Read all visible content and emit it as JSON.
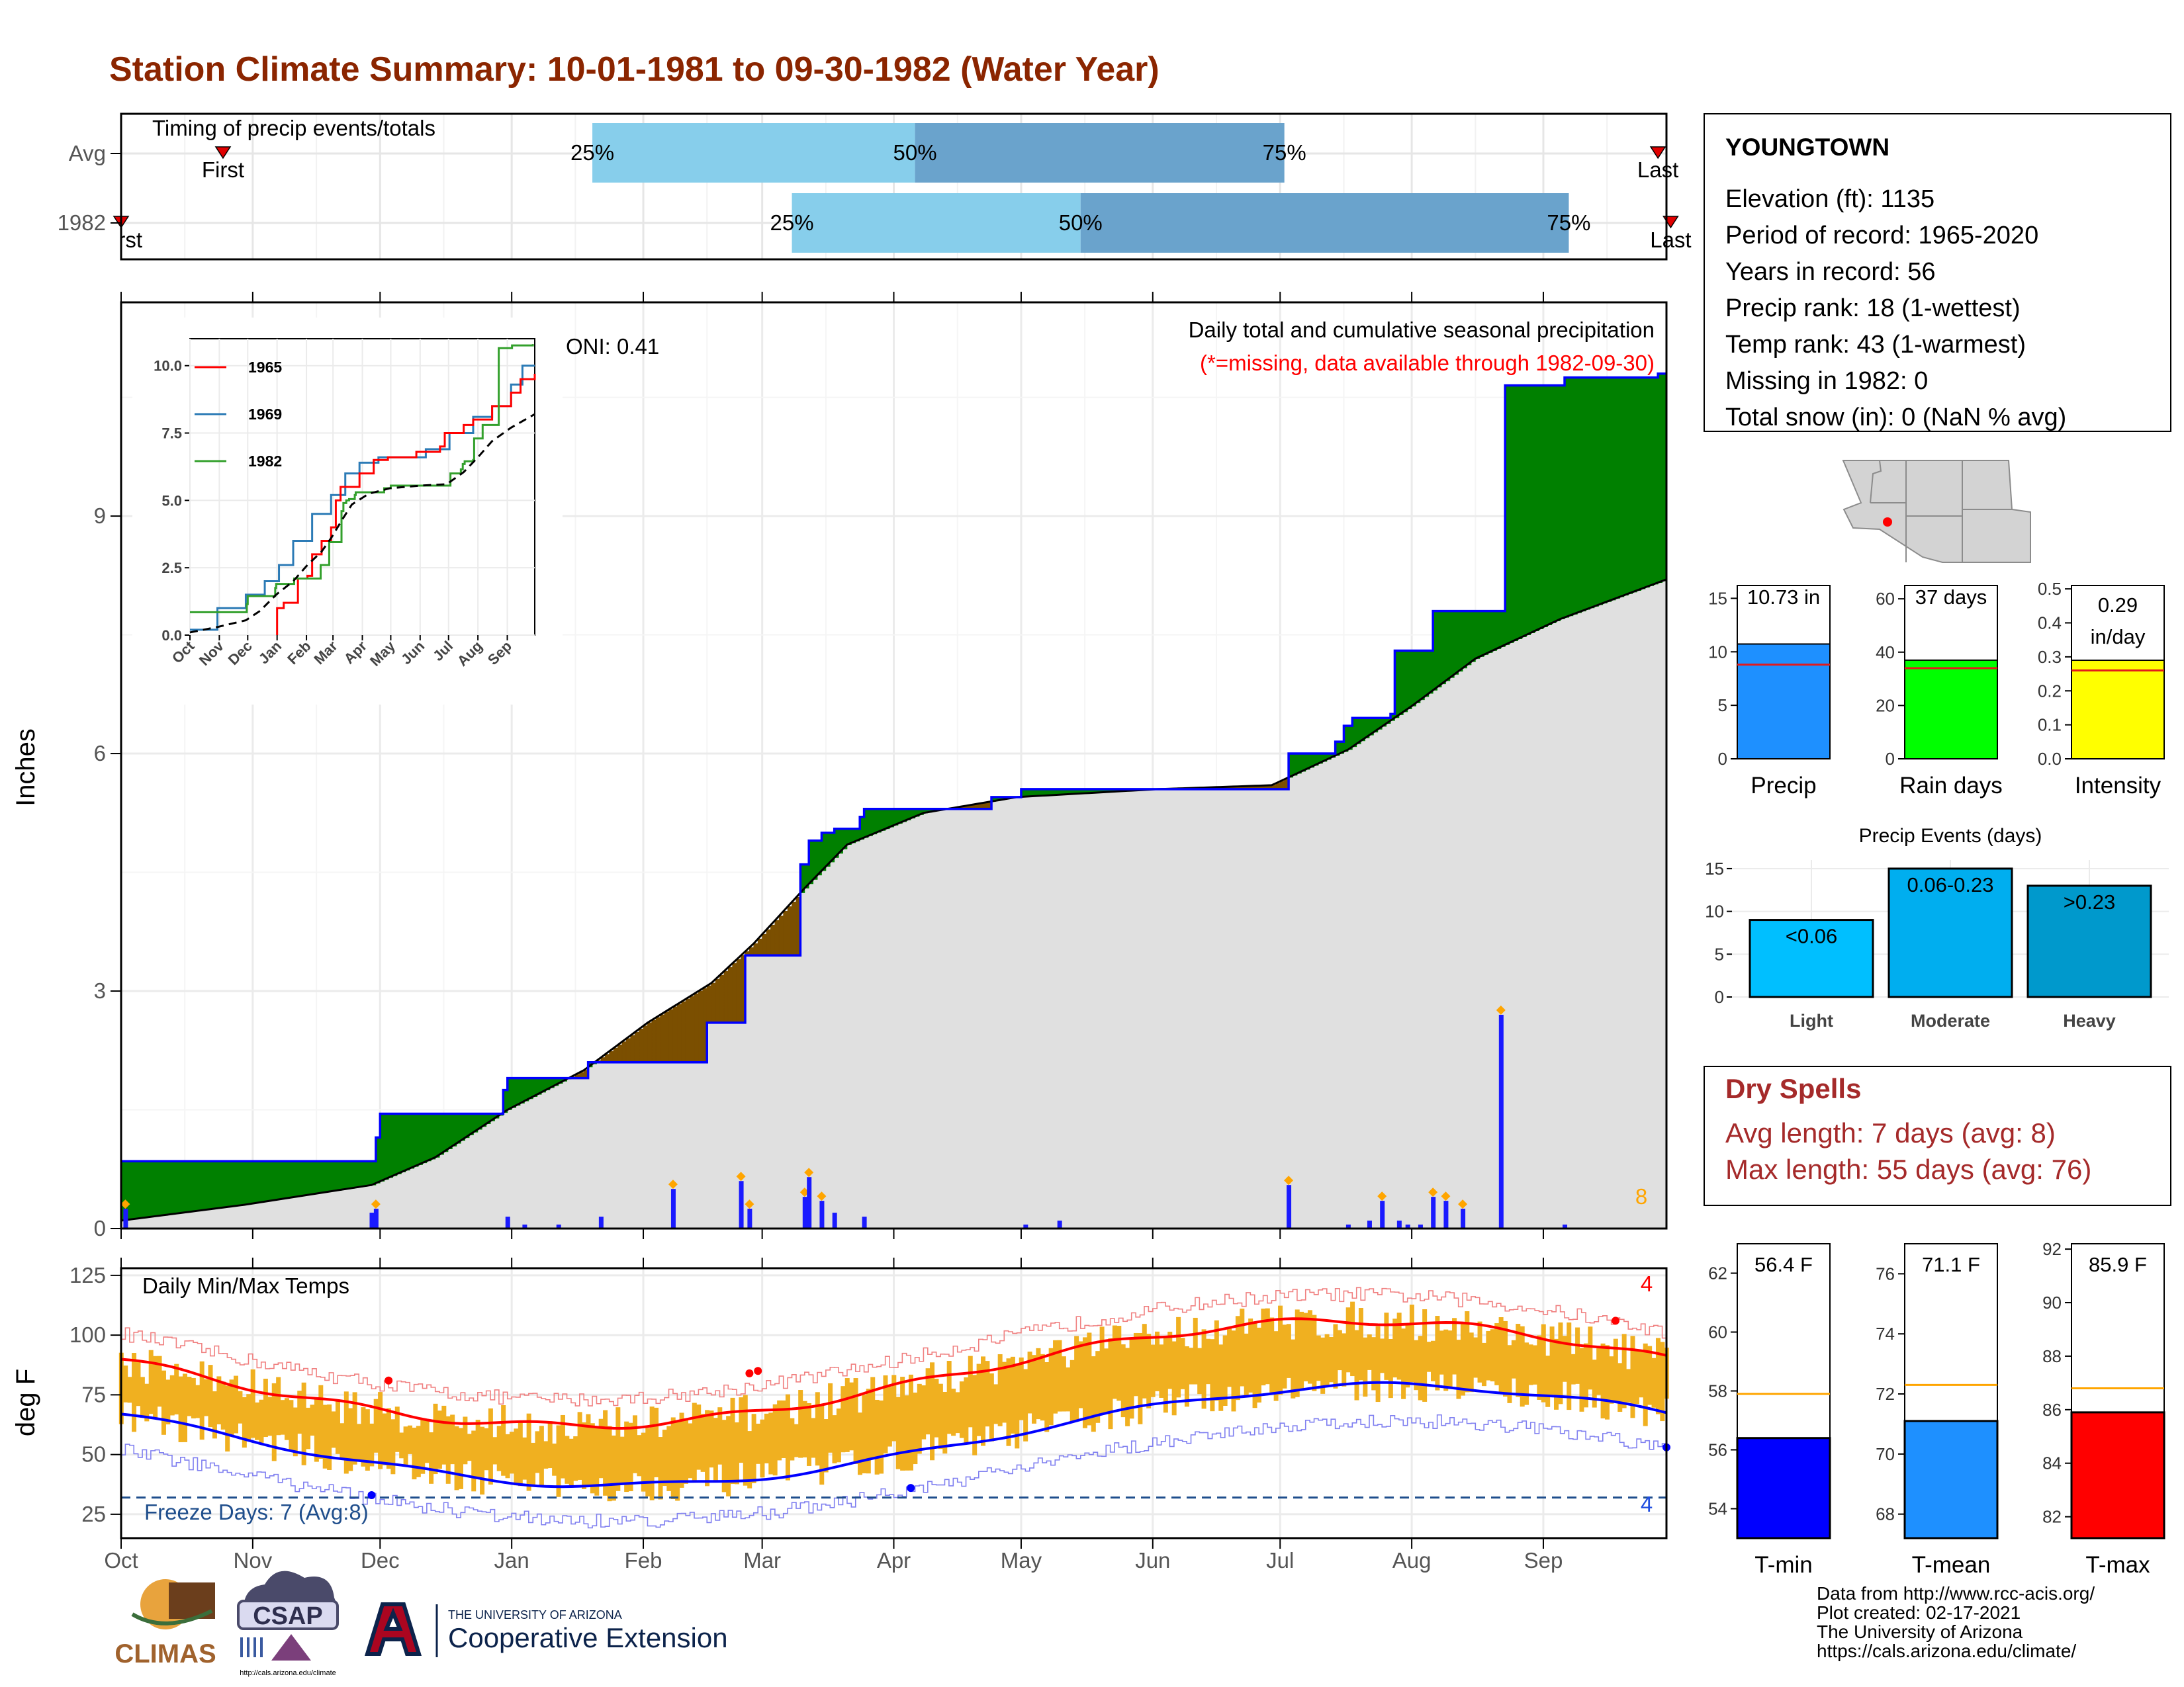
{
  "title": "Station Climate Summary: 10-01-1981 to 09-30-1982 (Water Year)",
  "colors": {
    "title": "#8B2500",
    "light_blue": "#87CEEB",
    "mid_blue": "#6AA3CC",
    "green_fill": "#008000",
    "brown_fill": "#7B4F00",
    "gray_fill": "#E0E0E0",
    "blue_line": "#0000FF",
    "orange": "#FFA500",
    "temp_bar": "#F0B020",
    "red": "#FF0000",
    "dark_red_text": "#A52A2A"
  },
  "timing": {
    "title": "Timing of precip events/totals",
    "row_labels": [
      "Avg",
      "1982"
    ],
    "avg_labels": {
      "first": "First",
      "p25": "25%",
      "p50": "50%",
      "p75": "75%",
      "last": "Last"
    },
    "yr_labels": {
      "first": "First",
      "p25": "25%",
      "p50": "50%",
      "p75": "75%",
      "last": "Last"
    },
    "avg": {
      "first": 25,
      "p25": 112,
      "p50": 188,
      "p75": 275,
      "last": 363
    },
    "yr": {
      "first": 1,
      "p25": 159,
      "p50": 227,
      "p75": 342,
      "last": 366
    }
  },
  "precip_chart": {
    "ylabel": "Inches",
    "yticks": [
      "0",
      "3",
      "6",
      "9"
    ],
    "oni_label": "ONI: 0.41",
    "title": "Daily total and cumulative seasonal precipitation",
    "subtitle": "(*=missing, data available through 1982-09-30)",
    "count_label": "8",
    "month_labels": [
      "Oct",
      "Nov",
      "Dec",
      "Jan",
      "Feb",
      "Mar",
      "Apr",
      "May",
      "Jun",
      "Jul",
      "Aug",
      "Sep"
    ]
  },
  "chart_data": {
    "type": "area",
    "title": "Daily total and cumulative seasonal precipitation",
    "ylabel": "Inches",
    "ylim": [
      0,
      11.7
    ],
    "x_unit": "day of water year (1 = Oct 1)",
    "cumulative_1982": [
      [
        1,
        0.85
      ],
      [
        60,
        0.85
      ],
      [
        61,
        1.15
      ],
      [
        62,
        1.45
      ],
      [
        90,
        1.45
      ],
      [
        91,
        1.75
      ],
      [
        92,
        1.9
      ],
      [
        110,
        1.9
      ],
      [
        111,
        2.1
      ],
      [
        138,
        2.1
      ],
      [
        139,
        2.6
      ],
      [
        147,
        2.6
      ],
      [
        148,
        3.45
      ],
      [
        160,
        3.45
      ],
      [
        161,
        4.6
      ],
      [
        163,
        4.9
      ],
      [
        166,
        5.0
      ],
      [
        169,
        5.05
      ],
      [
        175,
        5.2
      ],
      [
        176,
        5.3
      ],
      [
        205,
        5.3
      ],
      [
        206,
        5.45
      ],
      [
        212,
        5.45
      ],
      [
        213,
        5.55
      ],
      [
        275,
        5.55
      ],
      [
        276,
        6.0
      ],
      [
        287,
        6.15
      ],
      [
        289,
        6.35
      ],
      [
        291,
        6.45
      ],
      [
        300,
        6.5
      ],
      [
        301,
        7.3
      ],
      [
        309,
        7.3
      ],
      [
        310,
        7.8
      ],
      [
        326,
        7.8
      ],
      [
        327,
        10.65
      ],
      [
        340,
        10.65
      ],
      [
        341,
        10.75
      ],
      [
        363,
        10.8
      ]
    ],
    "average_cumulative": [
      [
        1,
        0.1
      ],
      [
        30,
        0.3
      ],
      [
        60,
        0.55
      ],
      [
        75,
        0.9
      ],
      [
        92,
        1.5
      ],
      [
        110,
        2.0
      ],
      [
        125,
        2.6
      ],
      [
        140,
        3.1
      ],
      [
        150,
        3.6
      ],
      [
        162,
        4.3
      ],
      [
        172,
        4.85
      ],
      [
        190,
        5.25
      ],
      [
        212,
        5.45
      ],
      [
        245,
        5.55
      ],
      [
        272,
        5.6
      ],
      [
        290,
        6.05
      ],
      [
        305,
        6.6
      ],
      [
        320,
        7.2
      ],
      [
        340,
        7.7
      ],
      [
        365,
        8.2
      ]
    ],
    "daily_precip": [
      [
        2,
        0.25
      ],
      [
        60,
        0.2
      ],
      [
        61,
        0.25
      ],
      [
        92,
        0.15
      ],
      [
        96,
        0.05
      ],
      [
        104,
        0.05
      ],
      [
        114,
        0.15
      ],
      [
        131,
        0.5
      ],
      [
        147,
        0.6
      ],
      [
        149,
        0.25
      ],
      [
        162,
        0.4
      ],
      [
        163,
        0.65
      ],
      [
        166,
        0.35
      ],
      [
        169,
        0.2
      ],
      [
        176,
        0.15
      ],
      [
        214,
        0.05
      ],
      [
        222,
        0.1
      ],
      [
        276,
        0.55
      ],
      [
        290,
        0.05
      ],
      [
        295,
        0.1
      ],
      [
        298,
        0.35
      ],
      [
        302,
        0.1
      ],
      [
        304,
        0.05
      ],
      [
        307,
        0.05
      ],
      [
        310,
        0.4
      ],
      [
        313,
        0.35
      ],
      [
        317,
        0.25
      ],
      [
        326,
        2.7
      ],
      [
        341,
        0.05
      ]
    ]
  },
  "inset": {
    "legend": [
      "1965",
      "1969",
      "1982"
    ],
    "legend_colors": [
      "#FF0000",
      "#2C7BB6",
      "#33A02C"
    ],
    "yticks": [
      "0.0",
      "2.5",
      "5.0",
      "7.5",
      "10.0"
    ],
    "xticks": [
      "Oct",
      "Nov",
      "Dec",
      "Jan",
      "Feb",
      "Mar",
      "Apr",
      "May",
      "Jun",
      "Jul",
      "Aug",
      "Sep"
    ]
  },
  "temp_chart": {
    "ylabel": "deg F",
    "title": "Daily Min/Max Temps",
    "freeze_label": "Freeze Days: 7 (Avg:8)",
    "yticks": [
      "25",
      "50",
      "75",
      "100",
      "125"
    ],
    "hot_count": "4",
    "cold_count": "4",
    "freeze_threshold": 32
  },
  "station": {
    "name": "YOUNGTOWN",
    "lines": [
      "Elevation (ft): 1135",
      "Period of record: 1965-2020",
      "Years in record: 56",
      "Precip rank: 18 (1-wettest)",
      "Temp rank: 43 (1-warmest)",
      "Missing in 1982: 0",
      "Total snow (in): 0 (NaN % avg)"
    ]
  },
  "summary_bars": {
    "precip": {
      "label": "Precip",
      "value_text": "10.73 in",
      "value": 10.73,
      "avg": 8.8,
      "yticks": [
        "0",
        "5",
        "10",
        "15"
      ],
      "color": "#1E90FF"
    },
    "rain_days": {
      "label": "Rain days",
      "value_text": "37 days",
      "value": 37,
      "avg": 34,
      "yticks": [
        "0",
        "20",
        "40",
        "60"
      ],
      "color": "#00FF00"
    },
    "intensity": {
      "label": "Intensity",
      "value_text": "0.29",
      "value_text2": "in/day",
      "value": 0.29,
      "avg": 0.26,
      "yticks": [
        "0.0",
        "0.1",
        "0.2",
        "0.3",
        "0.4",
        "0.5"
      ],
      "color": "#FFFF00"
    }
  },
  "precip_events": {
    "title": "Precip Events (days)",
    "yticks": [
      "0",
      "5",
      "10",
      "15"
    ],
    "bars": [
      {
        "cat": "Light",
        "label": "<0.06",
        "value": 9,
        "color": "#00BFFF"
      },
      {
        "cat": "Moderate",
        "label": "0.06-0.23",
        "value": 15,
        "color": "#00AEEF"
      },
      {
        "cat": "Heavy",
        "label": ">0.23",
        "value": 13,
        "color": "#0099CC"
      }
    ]
  },
  "dry_spells": {
    "title": "Dry Spells",
    "avg_line": "Avg length: 7 days (avg: 8)",
    "max_line": "Max length: 55 days (avg: 76)"
  },
  "temp_bars": {
    "tmin": {
      "label": "T-min",
      "value_text": "56.4 F",
      "value": 56.4,
      "avg": 57.9,
      "yticks": [
        "54",
        "56",
        "58",
        "60",
        "62"
      ],
      "color": "#0000FF"
    },
    "tmean": {
      "label": "T-mean",
      "value_text": "71.1 F",
      "value": 71.1,
      "avg": 72.3,
      "yticks": [
        "68",
        "70",
        "72",
        "74",
        "76"
      ],
      "color": "#1E90FF"
    },
    "tmax": {
      "label": "T-max",
      "value_text": "85.9 F",
      "value": 85.9,
      "avg": 86.8,
      "yticks": [
        "82",
        "84",
        "86",
        "88",
        "90",
        "92"
      ],
      "color": "#FF0000"
    }
  },
  "credits": [
    "Data from http://www.rcc-acis.org/",
    "Plot created: 02-17-2021",
    "The University of Arizona",
    "https://cals.arizona.edu/climate/"
  ],
  "logos": {
    "climas": "CLIMAS",
    "csap": "CSAP",
    "csap_url": "http://cals.arizona.edu/climate",
    "ua_line1": "THE UNIVERSITY OF ARIZONA",
    "ua_line2": "Cooperative Extension"
  }
}
